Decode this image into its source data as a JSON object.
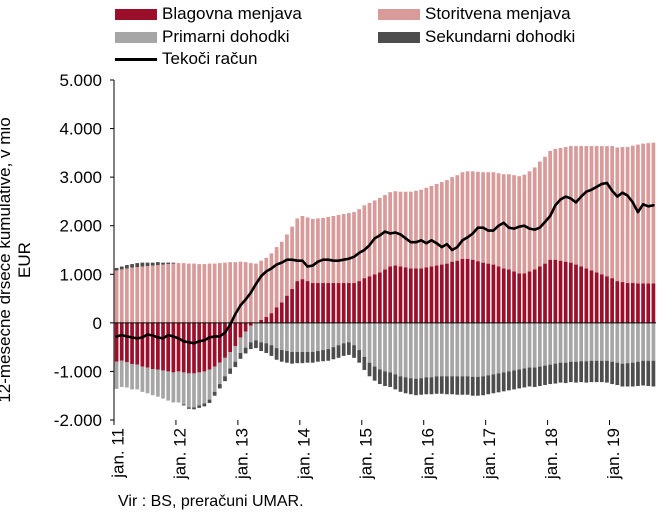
{
  "chart_data": {
    "type": "bar",
    "stacked": true,
    "ylabel": "12-mesečne drseče kumulative, v mio EUR",
    "source": "Vir : BS, preračuni UMAR.",
    "ylim": [
      -2000,
      5000
    ],
    "yticks": [
      "-2.000",
      "-1.000",
      "0",
      "1.000",
      "2.000",
      "3.000",
      "4.000",
      "5.000"
    ],
    "ytick_values": [
      -2000,
      -1000,
      0,
      1000,
      2000,
      3000,
      4000,
      5000
    ],
    "xticks": [
      "jan. 11",
      "jan. 12",
      "jan. 13",
      "jan. 14",
      "jan. 15",
      "jan. 16",
      "jan. 17",
      "jan. 18",
      "jan. 19"
    ],
    "x_start": "2011-01",
    "x_end": "2019-09",
    "colors": {
      "goods": "#9c0f2b",
      "services": "#d99a9a",
      "primary": "#a6a6a6",
      "secondary": "#4d4d4d",
      "current": "#000000"
    },
    "series": [
      {
        "name": "Blagovna menjava",
        "key": "goods",
        "kind": "bar",
        "values": [
          -800,
          -780,
          -810,
          -850,
          -860,
          -900,
          -920,
          -950,
          -960,
          -980,
          -1000,
          -1020,
          -1000,
          -1020,
          -1040,
          -1040,
          -1020,
          -1000,
          -960,
          -900,
          -820,
          -720,
          -600,
          -480,
          -300,
          -180,
          -60,
          0,
          60,
          120,
          200,
          320,
          420,
          560,
          700,
          860,
          900,
          860,
          820,
          820,
          820,
          820,
          820,
          820,
          820,
          820,
          820,
          860,
          920,
          960,
          1000,
          1040,
          1100,
          1160,
          1180,
          1160,
          1140,
          1120,
          1120,
          1120,
          1140,
          1160,
          1180,
          1200,
          1220,
          1260,
          1280,
          1320,
          1320,
          1300,
          1270,
          1240,
          1220,
          1200,
          1160,
          1120,
          1100,
          1060,
          1020,
          1020,
          1060,
          1100,
          1160,
          1220,
          1300,
          1300,
          1280,
          1260,
          1240,
          1200,
          1160,
          1120,
          1080,
          1040,
          1000,
          960,
          920,
          860,
          840,
          820,
          820,
          810,
          810,
          810,
          810
        ]
      },
      {
        "name": "Storitvena menjava",
        "key": "services",
        "kind": "bar",
        "values": [
          1080,
          1100,
          1120,
          1140,
          1150,
          1160,
          1170,
          1180,
          1190,
          1200,
          1210,
          1220,
          1230,
          1230,
          1220,
          1220,
          1210,
          1210,
          1220,
          1220,
          1230,
          1240,
          1250,
          1250,
          1260,
          1250,
          1230,
          1220,
          1220,
          1220,
          1230,
          1240,
          1250,
          1260,
          1280,
          1290,
          1300,
          1310,
          1320,
          1330,
          1340,
          1360,
          1380,
          1400,
          1420,
          1440,
          1460,
          1480,
          1500,
          1510,
          1520,
          1530,
          1530,
          1530,
          1530,
          1540,
          1560,
          1580,
          1600,
          1620,
          1640,
          1660,
          1680,
          1700,
          1720,
          1740,
          1760,
          1780,
          1800,
          1820,
          1840,
          1860,
          1880,
          1900,
          1920,
          1940,
          1960,
          1980,
          2000,
          2030,
          2060,
          2100,
          2160,
          2200,
          2240,
          2280,
          2320,
          2360,
          2400,
          2440,
          2480,
          2520,
          2560,
          2600,
          2640,
          2680,
          2720,
          2750,
          2780,
          2800,
          2830,
          2860,
          2880,
          2890,
          2900
        ]
      },
      {
        "name": "Primarni dohodki",
        "key": "primary",
        "kind": "bar",
        "values": [
          -560,
          -540,
          -520,
          -520,
          -510,
          -520,
          -530,
          -540,
          -560,
          -580,
          -600,
          -620,
          -640,
          -660,
          -700,
          -700,
          -680,
          -660,
          -620,
          -520,
          -440,
          -380,
          -340,
          -320,
          -320,
          -330,
          -340,
          -360,
          -400,
          -420,
          -460,
          -520,
          -560,
          -580,
          -600,
          -600,
          -600,
          -600,
          -600,
          -580,
          -560,
          -540,
          -500,
          -460,
          -420,
          -400,
          -460,
          -560,
          -700,
          -820,
          -900,
          -960,
          -1000,
          -1020,
          -1060,
          -1100,
          -1120,
          -1140,
          -1150,
          -1140,
          -1120,
          -1120,
          -1100,
          -1100,
          -1100,
          -1100,
          -1100,
          -1100,
          -1100,
          -1110,
          -1110,
          -1100,
          -1080,
          -1060,
          -1040,
          -1020,
          -1000,
          -980,
          -960,
          -940,
          -920,
          -920,
          -900,
          -880,
          -860,
          -840,
          -820,
          -820,
          -800,
          -800,
          -790,
          -790,
          -780,
          -780,
          -780,
          -780,
          -800,
          -820,
          -840,
          -830,
          -820,
          -800,
          -780,
          -780,
          -780
        ]
      },
      {
        "name": "Sekundarni dohodki",
        "key": "secondary",
        "kind": "bar",
        "values": [
          50,
          60,
          70,
          70,
          80,
          80,
          70,
          60,
          60,
          40,
          30,
          20,
          0,
          -20,
          -30,
          -40,
          -50,
          -60,
          -70,
          -80,
          -90,
          -100,
          -110,
          -110,
          -120,
          -120,
          -140,
          -160,
          -180,
          -200,
          -220,
          -240,
          -240,
          -240,
          -240,
          -230,
          -230,
          -220,
          -220,
          -220,
          -230,
          -240,
          -250,
          -260,
          -260,
          -260,
          -260,
          -260,
          -270,
          -280,
          -290,
          -300,
          -300,
          -300,
          -310,
          -320,
          -330,
          -330,
          -340,
          -340,
          -350,
          -350,
          -360,
          -360,
          -370,
          -370,
          -380,
          -380,
          -380,
          -390,
          -390,
          -390,
          -390,
          -390,
          -390,
          -390,
          -390,
          -390,
          -390,
          -390,
          -390,
          -400,
          -400,
          -400,
          -400,
          -410,
          -410,
          -420,
          -420,
          -430,
          -430,
          -440,
          -440,
          -440,
          -440,
          -450,
          -460,
          -460,
          -470,
          -480,
          -490,
          -500,
          -510,
          -520,
          -530
        ]
      },
      {
        "name": "Tekoči račun",
        "key": "current",
        "kind": "line",
        "values": [
          -280,
          -250,
          -280,
          -300,
          -320,
          -300,
          -240,
          -260,
          -300,
          -320,
          -250,
          -280,
          -320,
          -380,
          -400,
          -420,
          -380,
          -360,
          -300,
          -280,
          -280,
          -200,
          -40,
          180,
          360,
          480,
          620,
          800,
          960,
          1060,
          1120,
          1200,
          1240,
          1300,
          1300,
          1280,
          1280,
          1160,
          1180,
          1260,
          1300,
          1300,
          1280,
          1280,
          1300,
          1320,
          1360,
          1440,
          1500,
          1600,
          1740,
          1800,
          1880,
          1840,
          1860,
          1820,
          1740,
          1660,
          1660,
          1700,
          1640,
          1700,
          1640,
          1560,
          1620,
          1500,
          1560,
          1700,
          1760,
          1840,
          1960,
          1960,
          1900,
          1900,
          2000,
          2060,
          1960,
          1940,
          1980,
          2000,
          1940,
          1920,
          1960,
          2080,
          2200,
          2420,
          2540,
          2600,
          2560,
          2480,
          2600,
          2700,
          2740,
          2800,
          2860,
          2880,
          2720,
          2600,
          2680,
          2620,
          2480,
          2280,
          2440,
          2400,
          2420
        ]
      }
    ],
    "legend": [
      {
        "label": "Blagovna menjava",
        "key": "goods",
        "kind": "bar"
      },
      {
        "label": "Storitvena menjava",
        "key": "services",
        "kind": "bar"
      },
      {
        "label": "Primarni dohodki",
        "key": "primary",
        "kind": "bar"
      },
      {
        "label": "Sekundarni dohodki",
        "key": "secondary",
        "kind": "bar"
      },
      {
        "label": "Tekoči račun",
        "key": "current",
        "kind": "line"
      }
    ],
    "legend_placement": "top",
    "grid": false
  }
}
